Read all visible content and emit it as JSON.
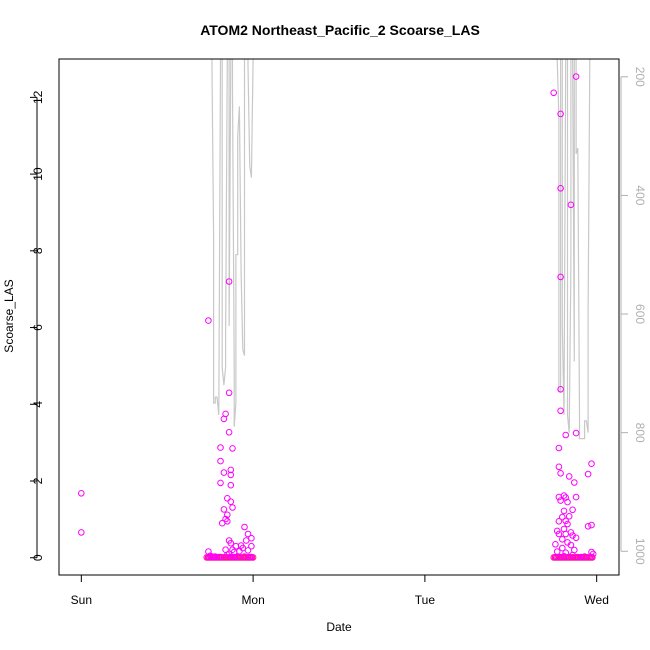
{
  "chart_data": {
    "type": "scatter",
    "title": "ATOM2 Northeast_Pacific_2 Scoarse_LAS",
    "xlabel": "Date",
    "ylabel": "Scoarse_LAS",
    "x_ticks": [
      "Sun",
      "Mon",
      "Tue",
      "Wed"
    ],
    "x_range_days": [
      -0.13,
      3.13
    ],
    "ylim": [
      -0.45,
      13.0
    ],
    "y_ticks": [
      0,
      2,
      4,
      6,
      8,
      10,
      12
    ],
    "right_axis": {
      "ylim_reversed": [
        1040,
        170
      ],
      "ticks": [
        200,
        400,
        600,
        800,
        1000
      ],
      "color": "#b0b0b0"
    },
    "colors": {
      "points": "#ff00ff",
      "points_dense": "#ff1493",
      "line": "#c8c8c8"
    },
    "series": [
      {
        "kind": "points",
        "values": [
          [
            0.0,
            1.68
          ],
          [
            0.0,
            0.66
          ],
          [
            0.74,
            6.18
          ],
          [
            0.74,
            0.16
          ],
          [
            0.74,
            0.02
          ],
          [
            0.75,
            0.05
          ],
          [
            0.76,
            0.03
          ],
          [
            0.77,
            0.02
          ],
          [
            0.78,
            0.03
          ],
          [
            0.8,
            0.02
          ],
          [
            0.81,
            2.87
          ],
          [
            0.81,
            2.52
          ],
          [
            0.81,
            1.95
          ],
          [
            0.81,
            0.02
          ],
          [
            0.82,
            0.9
          ],
          [
            0.83,
            1.26
          ],
          [
            0.83,
            3.62
          ],
          [
            0.83,
            2.22
          ],
          [
            0.84,
            3.75
          ],
          [
            0.84,
            1.01
          ],
          [
            0.84,
            0.21
          ],
          [
            0.85,
            1.55
          ],
          [
            0.85,
            1.12
          ],
          [
            0.85,
            0.95
          ],
          [
            0.85,
            0.08
          ],
          [
            0.86,
            7.2
          ],
          [
            0.86,
            4.3
          ],
          [
            0.86,
            3.27
          ],
          [
            0.86,
            0.45
          ],
          [
            0.86,
            0.1
          ],
          [
            0.87,
            2.29
          ],
          [
            0.87,
            2.16
          ],
          [
            0.87,
            1.89
          ],
          [
            0.87,
            1.46
          ],
          [
            0.87,
            0.38
          ],
          [
            0.87,
            0.02
          ],
          [
            0.88,
            2.85
          ],
          [
            0.88,
            1.31
          ],
          [
            0.88,
            0.21
          ],
          [
            0.89,
            0.15
          ],
          [
            0.89,
            0.02
          ],
          [
            0.9,
            0.3
          ],
          [
            0.91,
            0.02
          ],
          [
            0.92,
            0.17
          ],
          [
            0.93,
            0.32
          ],
          [
            0.94,
            0.25
          ],
          [
            0.95,
            0.8
          ],
          [
            0.95,
            0.03
          ],
          [
            0.96,
            0.45
          ],
          [
            0.97,
            0.62
          ],
          [
            0.97,
            0.19
          ],
          [
            0.98,
            0.02
          ],
          [
            0.99,
            0.51
          ],
          [
            0.99,
            0.3
          ],
          [
            0.99,
            0.02
          ],
          [
            2.75,
            12.12
          ],
          [
            2.76,
            0.35
          ],
          [
            2.76,
            0.02
          ],
          [
            2.77,
            0.7
          ],
          [
            2.77,
            0.16
          ],
          [
            2.78,
            2.86
          ],
          [
            2.78,
            2.37
          ],
          [
            2.78,
            1.58
          ],
          [
            2.78,
            0.95
          ],
          [
            2.78,
            0.62
          ],
          [
            2.79,
            11.57
          ],
          [
            2.79,
            9.63
          ],
          [
            2.79,
            7.32
          ],
          [
            2.79,
            4.39
          ],
          [
            2.79,
            3.83
          ],
          [
            2.79,
            2.2
          ],
          [
            2.79,
            1.49
          ],
          [
            2.79,
            0.02
          ],
          [
            2.8,
            1.06
          ],
          [
            2.8,
            0.48
          ],
          [
            2.8,
            0.25
          ],
          [
            2.81,
            1.62
          ],
          [
            2.81,
            1.22
          ],
          [
            2.81,
            0.75
          ],
          [
            2.81,
            0.04
          ],
          [
            2.82,
            3.2
          ],
          [
            2.82,
            1.57
          ],
          [
            2.82,
            0.96
          ],
          [
            2.82,
            0.62
          ],
          [
            2.82,
            0.13
          ],
          [
            2.83,
            1.45
          ],
          [
            2.83,
            0.88
          ],
          [
            2.83,
            0.4
          ],
          [
            2.84,
            2.12
          ],
          [
            2.84,
            1.08
          ],
          [
            2.84,
            0.02
          ],
          [
            2.85,
            9.2
          ],
          [
            2.85,
            0.66
          ],
          [
            2.85,
            0.33
          ],
          [
            2.86,
            1.25
          ],
          [
            2.86,
            0.58
          ],
          [
            2.86,
            0.07
          ],
          [
            2.87,
            1.96
          ],
          [
            2.87,
            0.2
          ],
          [
            2.88,
            12.54
          ],
          [
            2.88,
            3.25
          ],
          [
            2.88,
            1.58
          ],
          [
            2.88,
            0.52
          ],
          [
            2.89,
            0.02
          ],
          [
            2.91,
            0.02
          ],
          [
            2.93,
            0.03
          ],
          [
            2.95,
            2.18
          ],
          [
            2.95,
            0.82
          ],
          [
            2.97,
            2.45
          ],
          [
            2.97,
            0.85
          ],
          [
            2.97,
            0.15
          ],
          [
            2.97,
            0.02
          ],
          [
            2.98,
            0.1
          ]
        ]
      },
      {
        "kind": "line",
        "axis": "right",
        "segments": [
          [
            [
              0.76,
              170
            ],
            [
              0.77,
              470
            ],
            [
              0.77,
              750
            ],
            [
              0.78,
              750
            ],
            [
              0.78,
              740
            ],
            [
              0.79,
              740
            ],
            [
              0.8,
              770
            ],
            [
              0.81,
              170
            ],
            [
              0.82,
              170
            ],
            [
              0.82,
              690
            ],
            [
              0.83,
              720
            ],
            [
              0.84,
              690
            ],
            [
              0.84,
              690
            ],
            [
              0.84,
              640
            ],
            [
              0.85,
              170
            ],
            [
              0.86,
              170
            ],
            [
              0.86,
              620
            ],
            [
              0.87,
              170
            ],
            [
              0.88,
              170
            ],
            [
              0.88,
              220
            ],
            [
              0.89,
              690
            ],
            [
              0.89,
              790
            ],
            [
              0.9,
              750
            ],
            [
              0.9,
              500
            ],
            [
              0.91,
              500
            ],
            [
              0.91,
              300
            ],
            [
              0.92,
              250
            ],
            [
              0.93,
              530
            ],
            [
              0.94,
              660
            ],
            [
              0.95,
              670
            ],
            [
              0.95,
              170
            ],
            [
              0.96,
              170
            ],
            [
              0.97,
              170
            ],
            [
              0.97,
              180
            ],
            [
              0.98,
              350
            ],
            [
              0.99,
              370
            ],
            [
              1.0,
              170
            ]
          ],
          [
            [
              2.74,
              170
            ],
            [
              2.77,
              170
            ],
            [
              2.78,
              270
            ],
            [
              2.78,
              730
            ],
            [
              2.79,
              730
            ],
            [
              2.79,
              170
            ],
            [
              2.8,
              170
            ],
            [
              2.8,
              620
            ],
            [
              2.81,
              770
            ],
            [
              2.82,
              170
            ],
            [
              2.83,
              170
            ],
            [
              2.83,
              770
            ],
            [
              2.84,
              800
            ],
            [
              2.85,
              520
            ],
            [
              2.85,
              170
            ],
            [
              2.86,
              170
            ],
            [
              2.87,
              680
            ],
            [
              2.87,
              170
            ],
            [
              2.88,
              170
            ],
            [
              2.88,
              330
            ],
            [
              2.89,
              320
            ],
            [
              2.9,
              770
            ],
            [
              2.9,
              810
            ],
            [
              2.91,
              810
            ],
            [
              2.93,
              810
            ],
            [
              2.93,
              780
            ],
            [
              2.94,
              780
            ],
            [
              2.95,
              800
            ],
            [
              2.95,
              600
            ],
            [
              2.96,
              170
            ],
            [
              2.97,
              170
            ]
          ]
        ]
      }
    ]
  }
}
